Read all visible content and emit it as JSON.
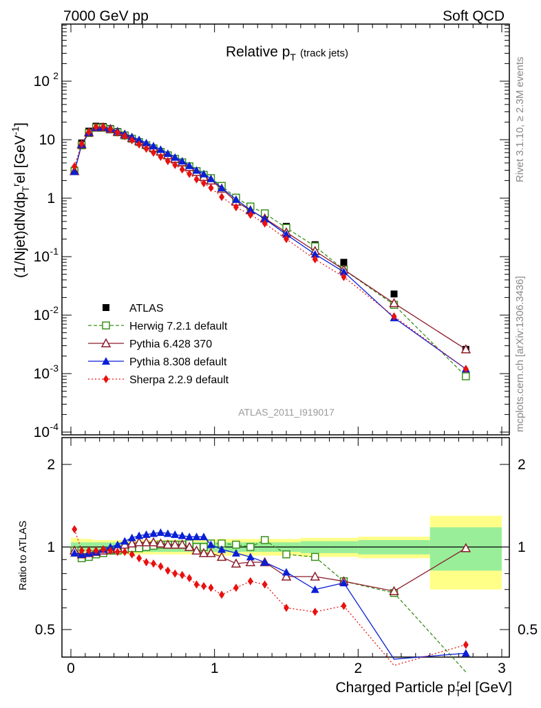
{
  "chart_data": [
    {
      "type": "line",
      "panel": "main",
      "header_left": "7000 GeV pp",
      "header_right": "Soft QCD",
      "title": "Relative p",
      "title_sub": "T",
      "title_suffix": "(track jets)",
      "ylabel": "(1/Njet)dN/dp_T^rel [GeV^-1]",
      "ylabel_parts": {
        "pre": "(1/Njet)dN/dp",
        "sub": "T",
        "sup": "r",
        "post": "el [GeV",
        "sup2": "-1",
        "end": "]"
      },
      "yscale": "log",
      "ylim": [
        0.0001,
        1000
      ],
      "xlim": [
        -0.05,
        3.05
      ],
      "yticks": [
        {
          "v": 0.0001,
          "label": "10",
          "exp": "-4"
        },
        {
          "v": 0.001,
          "label": "10",
          "exp": "-3"
        },
        {
          "v": 0.01,
          "label": "10",
          "exp": "-2"
        },
        {
          "v": 0.1,
          "label": "10",
          "exp": "-1"
        },
        {
          "v": 1,
          "label": "1",
          "exp": ""
        },
        {
          "v": 10,
          "label": "10",
          "exp": ""
        },
        {
          "v": 100,
          "label": "10",
          "exp": "2"
        }
      ],
      "watermark": "ATLAS_2011_I919017",
      "right_label_top": "Rivet 3.1.10, ≥ 2.3M events",
      "right_label_bottom": "mcplots.cern.ch [arXiv:1306.3436]",
      "legend": [
        {
          "name": "ATLAS",
          "color": "#000000",
          "marker": "square-filled",
          "line": "none"
        },
        {
          "name": "Herwig 7.2.1 default",
          "color": "#3a8f1c",
          "marker": "square-open",
          "line": "dashed"
        },
        {
          "name": "Pythia 6.428 370",
          "color": "#8b1a2a",
          "marker": "triangle-open",
          "line": "solid"
        },
        {
          "name": "Pythia 8.308 default",
          "color": "#0a1fd6",
          "marker": "triangle-filled",
          "line": "solid"
        },
        {
          "name": "Sherpa 2.2.9 default",
          "color": "#e8110f",
          "marker": "diamond-filled",
          "line": "dotted"
        }
      ],
      "legend_position": "lower-left",
      "x": [
        0.025,
        0.075,
        0.125,
        0.175,
        0.225,
        0.275,
        0.325,
        0.375,
        0.425,
        0.475,
        0.525,
        0.575,
        0.625,
        0.675,
        0.725,
        0.775,
        0.825,
        0.875,
        0.925,
        0.975,
        1.05,
        1.15,
        1.25,
        1.35,
        1.5,
        1.7,
        1.9,
        2.25,
        2.75
      ],
      "series": [
        {
          "name": "ATLAS",
          "values": [
            3.0,
            8.8,
            14.0,
            17.0,
            16.8,
            15.5,
            13.8,
            12.0,
            10.5,
            9.2,
            8.0,
            7.0,
            6.1,
            5.3,
            4.6,
            4.0,
            3.4,
            2.9,
            2.5,
            2.2,
            1.6,
            1.0,
            0.72,
            0.52,
            0.33,
            0.16,
            0.08,
            0.023,
            0.0026
          ]
        },
        {
          "name": "Herwig 7.2.1 default",
          "values": [
            2.9,
            8.0,
            13.0,
            16.0,
            16.0,
            15.0,
            13.4,
            11.8,
            10.4,
            9.1,
            8.0,
            7.1,
            6.2,
            5.4,
            4.7,
            4.1,
            3.5,
            2.9,
            2.5,
            2.2,
            1.62,
            1.02,
            0.72,
            0.55,
            0.31,
            0.15,
            0.06,
            0.015,
            0.0009
          ]
        },
        {
          "name": "Pythia 6.428 370",
          "values": [
            2.9,
            8.3,
            13.3,
            16.3,
            16.3,
            15.2,
            13.6,
            12.2,
            10.7,
            9.5,
            8.3,
            7.3,
            6.3,
            5.4,
            4.7,
            4.1,
            3.4,
            2.8,
            2.3,
            2.0,
            1.45,
            0.87,
            0.62,
            0.45,
            0.26,
            0.125,
            0.06,
            0.016,
            0.0026
          ]
        },
        {
          "name": "Pythia 8.308 default",
          "values": [
            2.85,
            8.3,
            13.3,
            16.2,
            16.5,
            15.5,
            14.0,
            12.5,
            11.2,
            10.0,
            8.8,
            7.8,
            6.8,
            5.8,
            5.0,
            4.3,
            3.6,
            3.0,
            2.6,
            2.15,
            1.5,
            0.95,
            0.63,
            0.44,
            0.24,
            0.11,
            0.055,
            0.009,
            0.0012
          ]
        },
        {
          "name": "Sherpa 2.2.9 default",
          "values": [
            3.5,
            8.5,
            13.5,
            16.5,
            16.5,
            15.0,
            13.2,
            11.5,
            9.8,
            8.3,
            7.0,
            6.0,
            5.1,
            4.3,
            3.7,
            3.1,
            2.6,
            2.1,
            1.8,
            1.5,
            1.05,
            0.7,
            0.52,
            0.37,
            0.2,
            0.09,
            0.045,
            0.0095,
            0.0012
          ]
        }
      ]
    },
    {
      "type": "line",
      "panel": "ratio",
      "ylabel": "Ratio to ATLAS",
      "xlabel": "Charged Particle p_T^rel [GeV]",
      "xlabel_parts": {
        "pre": "Charged Particle p",
        "sub": "T",
        "sup": "r",
        "post": "el [GeV]"
      },
      "yscale": "log",
      "ylim": [
        0.43,
        2.35
      ],
      "xlim": [
        -0.05,
        3.05
      ],
      "xticks": [
        {
          "v": 0,
          "label": "0"
        },
        {
          "v": 1,
          "label": "1"
        },
        {
          "v": 2,
          "label": "2"
        },
        {
          "v": 3,
          "label": "3"
        }
      ],
      "yticks": [
        {
          "v": 0.5,
          "label": "0.5"
        },
        {
          "v": 1,
          "label": "1"
        },
        {
          "v": 2,
          "label": "2"
        }
      ],
      "bands": {
        "bins": [
          [
            0,
            0.05
          ],
          [
            0.05,
            0.1
          ],
          [
            0.1,
            0.15
          ],
          [
            0.15,
            0.2
          ],
          [
            0.2,
            0.25
          ],
          [
            0.25,
            0.3
          ],
          [
            0.3,
            0.35
          ],
          [
            0.35,
            0.4
          ],
          [
            0.4,
            0.45
          ],
          [
            0.45,
            0.5
          ],
          [
            0.5,
            0.55
          ],
          [
            0.55,
            0.6
          ],
          [
            0.6,
            0.65
          ],
          [
            0.65,
            0.7
          ],
          [
            0.7,
            0.75
          ],
          [
            0.75,
            0.8
          ],
          [
            0.8,
            0.85
          ],
          [
            0.85,
            0.9
          ],
          [
            0.9,
            0.95
          ],
          [
            0.95,
            1.0
          ],
          [
            1.0,
            1.1
          ],
          [
            1.1,
            1.2
          ],
          [
            1.2,
            1.3
          ],
          [
            1.3,
            1.4
          ],
          [
            1.4,
            1.6
          ],
          [
            1.6,
            1.8
          ],
          [
            1.8,
            2.0
          ],
          [
            2.0,
            2.5
          ],
          [
            2.5,
            3.0
          ]
        ],
        "stat": [
          0.04,
          0.04,
          0.04,
          0.04,
          0.04,
          0.04,
          0.04,
          0.04,
          0.04,
          0.04,
          0.04,
          0.04,
          0.04,
          0.04,
          0.04,
          0.04,
          0.04,
          0.04,
          0.04,
          0.04,
          0.04,
          0.04,
          0.04,
          0.04,
          0.04,
          0.05,
          0.05,
          0.06,
          0.18
        ],
        "total": [
          0.08,
          0.07,
          0.07,
          0.06,
          0.06,
          0.06,
          0.06,
          0.06,
          0.06,
          0.06,
          0.06,
          0.06,
          0.06,
          0.06,
          0.06,
          0.06,
          0.06,
          0.06,
          0.06,
          0.06,
          0.07,
          0.07,
          0.07,
          0.07,
          0.07,
          0.08,
          0.08,
          0.09,
          0.3
        ],
        "stat_color": "#99ee99",
        "total_color": "#ffff88"
      },
      "series": [
        {
          "name": "Herwig 7.2.1 default",
          "values": [
            0.97,
            0.91,
            0.92,
            0.94,
            0.95,
            0.97,
            0.97,
            0.98,
            0.99,
            0.99,
            1.0,
            1.01,
            1.02,
            1.02,
            1.02,
            1.02,
            1.03,
            1.0,
            1.0,
            1.03,
            1.03,
            1.02,
            1.0,
            1.06,
            0.94,
            0.92,
            0.75,
            0.68,
            0.35
          ]
        },
        {
          "name": "Pythia 6.428 370",
          "values": [
            0.97,
            0.94,
            0.95,
            0.96,
            0.97,
            0.98,
            0.99,
            1.02,
            1.03,
            1.04,
            1.04,
            1.04,
            1.03,
            1.02,
            1.02,
            1.02,
            1.0,
            0.97,
            0.95,
            0.95,
            0.92,
            0.87,
            0.88,
            0.88,
            0.78,
            0.78,
            0.75,
            0.69,
            0.99
          ]
        },
        {
          "name": "Pythia 8.308 default",
          "values": [
            0.95,
            0.94,
            0.95,
            0.96,
            0.98,
            1.0,
            1.02,
            1.05,
            1.08,
            1.1,
            1.11,
            1.12,
            1.13,
            1.12,
            1.11,
            1.1,
            1.09,
            1.09,
            1.09,
            1.02,
            0.98,
            0.95,
            0.92,
            0.88,
            0.81,
            0.7,
            0.74,
            0.39,
            0.41
          ]
        },
        {
          "name": "Sherpa 2.2.9 default",
          "values": [
            1.16,
            0.97,
            0.97,
            0.97,
            0.98,
            0.97,
            0.96,
            0.96,
            0.94,
            0.91,
            0.88,
            0.87,
            0.85,
            0.82,
            0.8,
            0.79,
            0.77,
            0.73,
            0.72,
            0.71,
            0.67,
            0.71,
            0.75,
            0.73,
            0.6,
            0.58,
            0.61,
            0.37,
            0.44
          ]
        }
      ]
    }
  ]
}
